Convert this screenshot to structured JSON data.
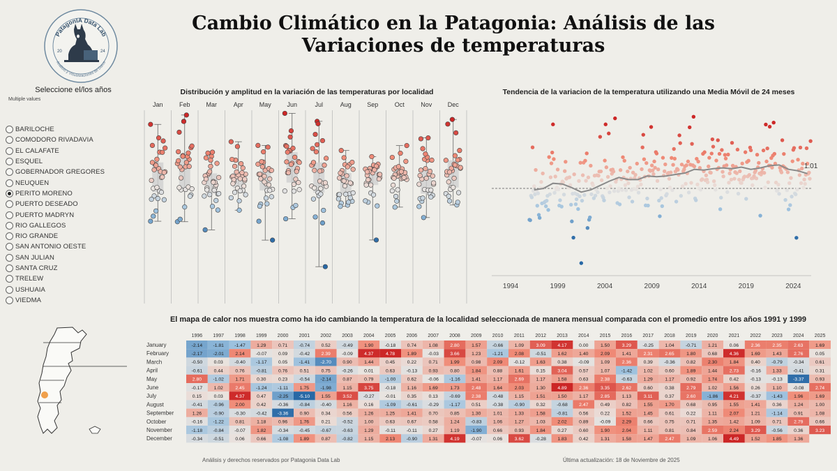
{
  "title": "Cambio Climático en la Patagonia: Análisis de las Variaciones de temperaturas",
  "logo": {
    "text_top": "PatagonIA Data Lab",
    "text_bottom": "Análisis y Visualizaciones de Datos",
    "year_left": "20",
    "year_right": "24"
  },
  "filter": {
    "title": "Seleccione el/los años",
    "subtitle": "Multiple values",
    "locations": [
      {
        "label": "BARILOCHE",
        "selected": false
      },
      {
        "label": "COMODORO RIVADAVIA",
        "selected": false
      },
      {
        "label": "EL CALAFATE",
        "selected": false
      },
      {
        "label": "ESQUEL",
        "selected": false
      },
      {
        "label": "GOBERNADOR GREGORES",
        "selected": false
      },
      {
        "label": "NEUQUEN",
        "selected": false
      },
      {
        "label": "PERITO MORENO",
        "selected": true
      },
      {
        "label": "PUERTO DESEADO",
        "selected": false
      },
      {
        "label": "PUERTO MADRYN",
        "selected": false
      },
      {
        "label": "RIO GALLEGOS",
        "selected": false
      },
      {
        "label": "RIO GRANDE",
        "selected": false
      },
      {
        "label": "SAN ANTONIO OESTE",
        "selected": false
      },
      {
        "label": "SAN JULIAN",
        "selected": false
      },
      {
        "label": "SANTA CRUZ",
        "selected": false
      },
      {
        "label": "TRELEW",
        "selected": false
      },
      {
        "label": "USHUAIA",
        "selected": false
      },
      {
        "label": "VIEDMA",
        "selected": false
      }
    ]
  },
  "colors": {
    "warm": "#d6342b",
    "cool": "#2f6ea8",
    "neutral": "#e9e4e0",
    "background": "#efeee9"
  },
  "box_chart": {
    "title": "Distribución y amplitud en la variación de las temperaturas por localidad",
    "months": [
      "Jan",
      "Feb",
      "Mar",
      "Apr",
      "May",
      "Jun",
      "Jul",
      "Aug",
      "Sep",
      "Oct",
      "Nov",
      "Dec"
    ]
  },
  "ma_chart": {
    "title": "Tendencia de la variacion de la temperatura utilizando una Media Móvil de 24 meses",
    "x_ticks": [
      "1994",
      "1999",
      "2004",
      "2009",
      "2014",
      "2019",
      "2024"
    ],
    "last_value_label": "1.01"
  },
  "heat_chart": {
    "title": "El mapa de calor nos muestra como ha ido cambiando la temperatura de la localidad seleccionada de manera mensual comparada con el promedio entre los años 1991 y 1999"
  },
  "chart_data": [
    {
      "type": "heatmap",
      "title": "El mapa de calor nos muestra como ha ido cambiando la temperatura de la localidad seleccionada de manera mensual comparada con el promedio entre los años 1991 y 1999",
      "years": [
        "1996",
        "1997",
        "1998",
        "1999",
        "2000",
        "2001",
        "2002",
        "2003",
        "2004",
        "2005",
        "2006",
        "2007",
        "2008",
        "2009",
        "2010",
        "2011",
        "2012",
        "2013",
        "2014",
        "2015",
        "2016",
        "2017",
        "2018",
        "2019",
        "2020",
        "2021",
        "2022",
        "2023",
        "2024",
        "2025"
      ],
      "months": [
        "January",
        "February",
        "March",
        "April",
        "May",
        "June",
        "July",
        "August",
        "September",
        "October",
        "November",
        "December"
      ],
      "values": [
        [
          -2.14,
          -1.81,
          -1.47,
          1.29,
          0.71,
          -0.74,
          0.52,
          -0.49,
          1.9,
          -0.18,
          0.74,
          1.08,
          2.8,
          1.57,
          -0.66,
          1.09,
          3.09,
          4.17,
          0.0,
          1.5,
          3.29,
          -0.25,
          1.04,
          -0.71,
          1.21,
          0.06,
          2.36,
          2.35,
          2.63,
          1.69
        ],
        [
          -2.17,
          -2.01,
          2.14,
          -0.07,
          0.09,
          -0.42,
          2.39,
          -0.09,
          4.37,
          4.78,
          1.89,
          -0.03,
          3.66,
          1.23,
          -1.21,
          2.08,
          -0.51,
          1.62,
          1.4,
          2.09,
          1.41,
          2.31,
          2.65,
          1.8,
          0.68,
          4.36,
          1.69,
          1.43,
          2.76,
          0.05
        ],
        [
          -0.5,
          0.03,
          -0.4,
          -1.17,
          0.05,
          -1.41,
          -2.7,
          0.9,
          1.44,
          0.45,
          0.22,
          0.71,
          1.99,
          0.98,
          2.09,
          -0.12,
          1.63,
          0.38,
          -0.09,
          1.09,
          2.36,
          0.39,
          -0.36,
          0.82,
          2.3,
          1.84,
          0.4,
          -0.79,
          -0.34,
          0.61
        ],
        [
          -0.61,
          0.44,
          0.76,
          -0.81,
          0.76,
          0.51,
          0.75,
          -0.26,
          0.01,
          0.63,
          -0.13,
          0.93,
          0.8,
          1.84,
          0.88,
          1.61,
          0.15,
          3.04,
          0.57,
          1.07,
          -1.42,
          1.02,
          0.6,
          1.89,
          1.44,
          2.73,
          -0.16,
          1.33,
          -0.41,
          0.31
        ],
        [
          2.8,
          -1.02,
          1.71,
          0.3,
          0.23,
          -0.54,
          -2.14,
          0.87,
          0.79,
          -1.0,
          0.62,
          -0.06,
          -1.16,
          1.41,
          1.17,
          2.69,
          1.17,
          1.58,
          0.63,
          2.38,
          -0.63,
          1.29,
          1.17,
          0.92,
          1.74,
          0.42,
          -0.13,
          -0.13,
          -3.37,
          0.93
        ],
        [
          -0.17,
          1.02,
          2.45,
          -1.24,
          -1.11,
          1.75,
          -1.98,
          1.15,
          3.75,
          -0.18,
          1.16,
          1.69,
          1.73,
          2.48,
          1.64,
          2.03,
          1.3,
          4.89,
          2.36,
          3.35,
          2.62,
          0.6,
          0.38,
          2.79,
          1.02,
          1.56,
          0.26,
          1.1,
          -0.08,
          2.74
        ],
        [
          0.15,
          0.03,
          4.37,
          0.47,
          -2.25,
          -5.1,
          1.55,
          3.52,
          -0.27,
          -0.01,
          0.35,
          0.13,
          -0.69,
          2.38,
          -0.48,
          1.15,
          1.51,
          1.5,
          1.17,
          2.85,
          1.13,
          3.11,
          0.37,
          2.6,
          -1.86,
          4.21,
          -0.37,
          -1.43,
          1.96,
          1.69
        ],
        [
          -0.41,
          -0.96,
          2.0,
          0.42,
          -0.36,
          -0.84,
          -0.4,
          1.16,
          0.16,
          -1.09,
          -0.61,
          -0.29,
          -1.17,
          0.51,
          -0.38,
          -0.9,
          0.32,
          -0.68,
          2.47,
          0.49,
          0.82,
          1.55,
          1.7,
          0.68,
          0.95,
          1.55,
          1.41,
          0.36,
          1.24,
          1.0
        ],
        [
          1.26,
          -0.9,
          -0.3,
          -0.42,
          -3.36,
          0.9,
          0.34,
          0.56,
          1.26,
          1.25,
          1.41,
          0.7,
          0.85,
          1.3,
          1.01,
          1.33,
          1.58,
          -0.81,
          0.56,
          0.22,
          1.52,
          1.45,
          0.61,
          0.22,
          1.11,
          2.07,
          1.21,
          -1.14,
          0.91,
          1.08
        ],
        [
          -0.16,
          -1.22,
          0.81,
          1.18,
          0.96,
          1.76,
          0.21,
          -0.52,
          1.0,
          0.63,
          0.67,
          0.58,
          1.24,
          -0.83,
          1.06,
          1.27,
          1.03,
          2.02,
          0.89,
          -0.09,
          2.29,
          0.66,
          0.75,
          0.71,
          1.35,
          1.42,
          1.09,
          0.71,
          2.79,
          0.66
        ],
        [
          -1.18,
          -0.84,
          -0.07,
          1.82,
          -0.34,
          -0.45,
          -0.67,
          -0.63,
          1.29,
          -0.11,
          -0.11,
          0.27,
          1.19,
          -1.9,
          0.66,
          0.93,
          1.84,
          0.27,
          0.6,
          1.9,
          2.04,
          1.11,
          0.81,
          0.84,
          2.59,
          2.24,
          3.29,
          -0.56,
          0.36,
          3.23
        ],
        [
          -0.34,
          -0.51,
          0.06,
          0.66,
          -1.08,
          1.89,
          0.87,
          -0.82,
          1.15,
          2.13,
          -0.9,
          1.31,
          4.19,
          -0.07,
          0.06,
          3.62,
          -0.28,
          1.83,
          0.42,
          1.31,
          1.58,
          1.47,
          2.47,
          1.09,
          1.06,
          4.49,
          1.52,
          1.85,
          1.36,
          null
        ]
      ]
    },
    {
      "type": "scatter",
      "title": "Tendencia de la variacion de la temperatura utilizando una Media Móvil de 24 meses",
      "x_ticks": [
        "1994",
        "1999",
        "2004",
        "2009",
        "2014",
        "2019",
        "2024"
      ],
      "moving_average_last": 1.01,
      "moving_average": [
        {
          "year": 1996,
          "value": -0.1
        },
        {
          "year": 1997,
          "value": 0.0
        },
        {
          "year": 1998,
          "value": 0.35
        },
        {
          "year": 1999,
          "value": 0.3
        },
        {
          "year": 2000,
          "value": 0.05
        },
        {
          "year": 2001,
          "value": -0.25
        },
        {
          "year": 2002,
          "value": -0.1
        },
        {
          "year": 2003,
          "value": 0.2
        },
        {
          "year": 2004,
          "value": 0.5
        },
        {
          "year": 2005,
          "value": 0.75
        },
        {
          "year": 2006,
          "value": 0.6
        },
        {
          "year": 2007,
          "value": 0.6
        },
        {
          "year": 2008,
          "value": 0.85
        },
        {
          "year": 2009,
          "value": 0.8
        },
        {
          "year": 2010,
          "value": 0.85
        },
        {
          "year": 2011,
          "value": 0.95
        },
        {
          "year": 2012,
          "value": 1.05
        },
        {
          "year": 2013,
          "value": 1.3
        },
        {
          "year": 2014,
          "value": 1.25
        },
        {
          "year": 2015,
          "value": 1.35
        },
        {
          "year": 2016,
          "value": 1.4
        },
        {
          "year": 2017,
          "value": 1.35
        },
        {
          "year": 2018,
          "value": 1.45
        },
        {
          "year": 2019,
          "value": 1.3
        },
        {
          "year": 2020,
          "value": 1.4
        },
        {
          "year": 2021,
          "value": 1.55
        },
        {
          "year": 2022,
          "value": 1.6
        },
        {
          "year": 2023,
          "value": 1.3
        },
        {
          "year": 2024,
          "value": 1.2
        },
        {
          "year": 2025,
          "value": 1.01
        }
      ]
    },
    {
      "type": "scatter",
      "title": "Distribución y amplitud en la variación de las temperaturas por localidad",
      "categories": [
        "Jan",
        "Feb",
        "Mar",
        "Apr",
        "May",
        "Jun",
        "Jul",
        "Aug",
        "Sep",
        "Oct",
        "Nov",
        "Dec"
      ]
    }
  ],
  "map": {
    "highlight_color": "#f0a04b"
  },
  "footer": {
    "left": "Análisis y derechos reservados por Patagonia Data Lab",
    "right": "Última actualización: 18 de Noviembre de 2025"
  }
}
